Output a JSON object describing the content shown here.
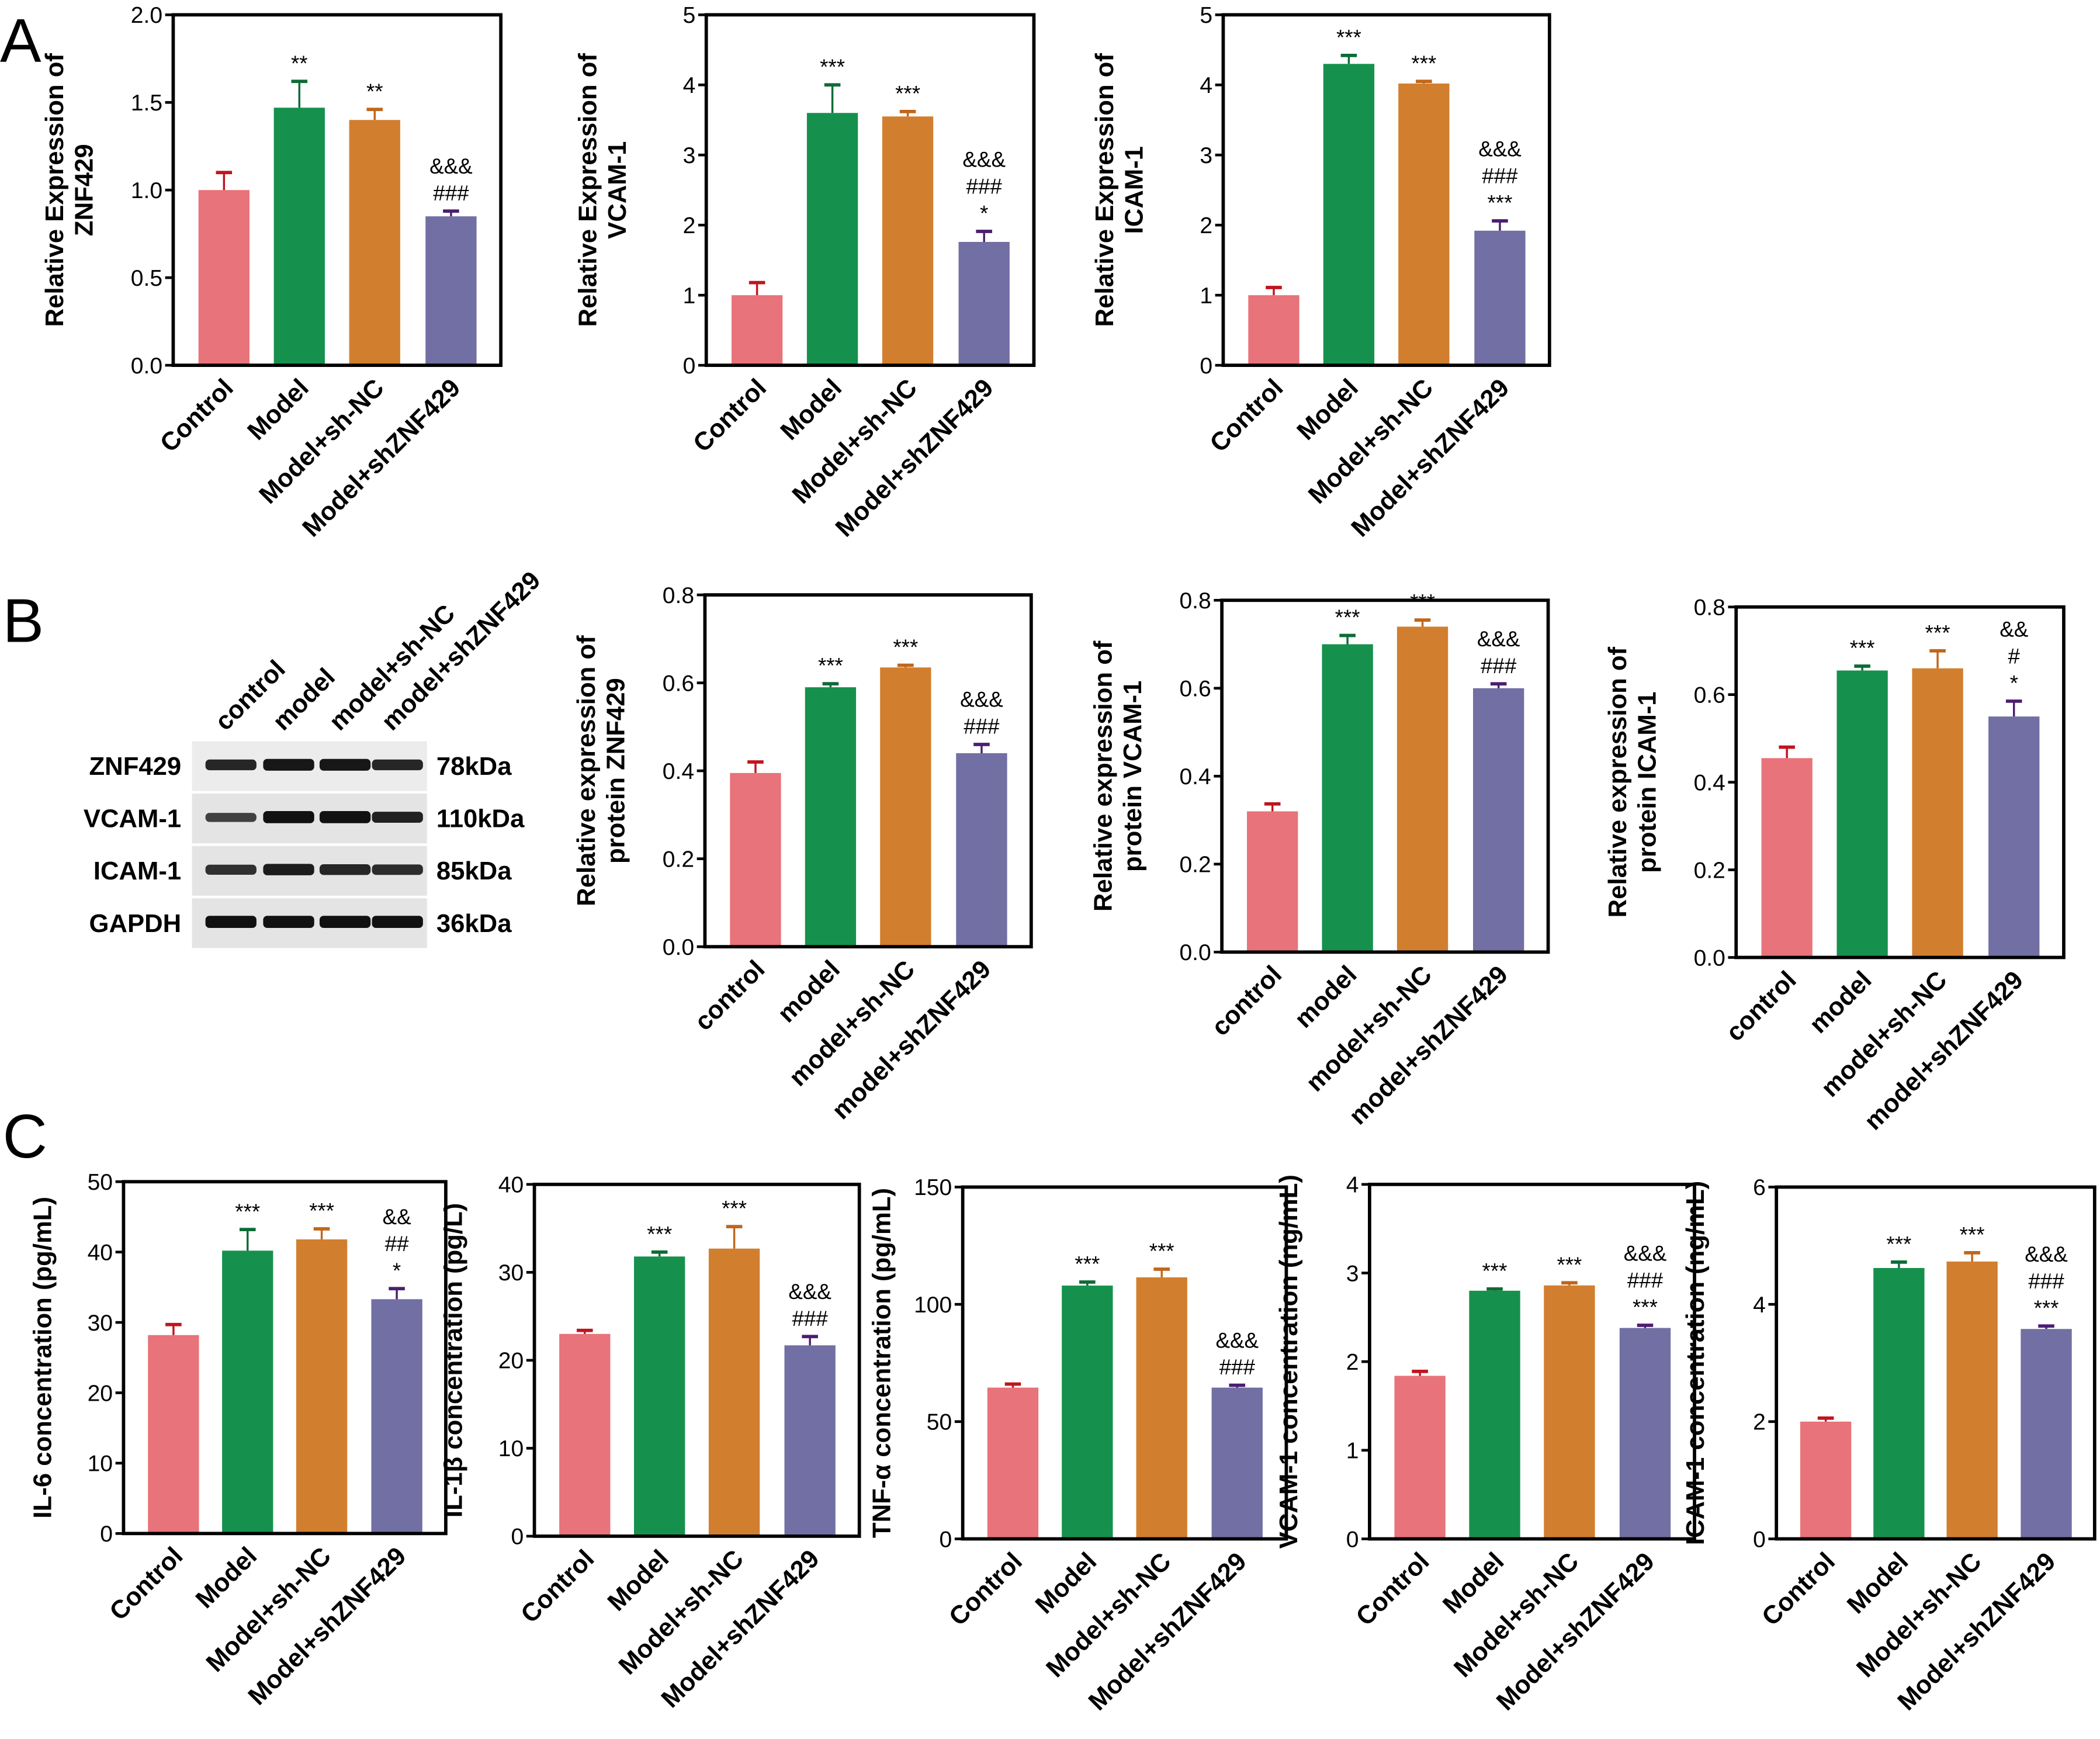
{
  "panel_labels": [
    "A",
    "B",
    "C"
  ],
  "colors": [
    "#E8737A",
    "#16914D",
    "#D17F2E",
    "#716FA3"
  ],
  "error_colors": [
    "#C0141E",
    "#0E6B36",
    "#C0661A",
    "#4A1E70"
  ],
  "western_blot": {
    "lanes": [
      "control",
      "model",
      "model+sh-NC",
      "model+shZNF429"
    ],
    "proteins": [
      {
        "name": "ZNF429",
        "size": "78kDa",
        "intensity": [
          0.8,
          0.95,
          0.95,
          0.8
        ]
      },
      {
        "name": "VCAM-1",
        "size": "110kDa",
        "intensity": [
          0.55,
          1.0,
          1.0,
          0.85
        ]
      },
      {
        "name": "ICAM-1",
        "size": "85kDa",
        "intensity": [
          0.7,
          0.9,
          0.8,
          0.75
        ]
      },
      {
        "name": "GAPDH",
        "size": "36kDa",
        "intensity": [
          1.0,
          1.0,
          1.0,
          1.0
        ]
      }
    ]
  },
  "chart_data": [
    {
      "type": "bar",
      "panel": "A",
      "ylabel": [
        "Relative Expression of",
        "ZNF429"
      ],
      "categories": [
        "Control",
        "Model",
        "Model+sh-NC",
        "Model+shZNF429"
      ],
      "values": [
        1.0,
        1.47,
        1.4,
        0.85
      ],
      "errors": [
        0.1,
        0.15,
        0.06,
        0.03
      ],
      "annotations": [
        [],
        [
          "**"
        ],
        [
          "**"
        ],
        [
          "&&&",
          "###"
        ]
      ],
      "ylim": [
        0,
        2
      ],
      "yticks": [
        "0.0",
        "0.5",
        "1.0",
        "1.5",
        "2.0"
      ],
      "tick_values": [
        0,
        0.5,
        1,
        1.5,
        2
      ]
    },
    {
      "type": "bar",
      "panel": "A",
      "ylabel": [
        "Relative Expression of",
        "VCAM-1"
      ],
      "categories": [
        "Control",
        "Model",
        "Model+sh-NC",
        "Model+shZNF429"
      ],
      "values": [
        1.0,
        3.6,
        3.55,
        1.76
      ],
      "errors": [
        0.18,
        0.4,
        0.07,
        0.15
      ],
      "annotations": [
        [],
        [
          "***"
        ],
        [
          "***"
        ],
        [
          "&&&",
          "###",
          "*"
        ]
      ],
      "ylim": [
        0,
        5
      ],
      "yticks": [
        "0",
        "1",
        "2",
        "3",
        "4",
        "5"
      ],
      "tick_values": [
        0,
        1,
        2,
        3,
        4,
        5
      ]
    },
    {
      "type": "bar",
      "panel": "A",
      "ylabel": [
        "Relative Expression of",
        "ICAM-1"
      ],
      "categories": [
        "Control",
        "Model",
        "Model+sh-NC",
        "Model+shZNF429"
      ],
      "values": [
        1.0,
        4.3,
        4.02,
        1.92
      ],
      "errors": [
        0.11,
        0.12,
        0.03,
        0.14
      ],
      "annotations": [
        [],
        [
          "***"
        ],
        [
          "***"
        ],
        [
          "&&&",
          "###",
          "***"
        ]
      ],
      "ylim": [
        0,
        5
      ],
      "yticks": [
        "0",
        "1",
        "2",
        "3",
        "4",
        "5"
      ],
      "tick_values": [
        0,
        1,
        2,
        3,
        4,
        5
      ]
    },
    {
      "type": "bar",
      "panel": "B",
      "ylabel": [
        "Relative expression of",
        "protein ZNF429"
      ],
      "categories": [
        "control",
        "model",
        "model+sh-NC",
        "model+shZNF429"
      ],
      "values": [
        0.395,
        0.59,
        0.635,
        0.44
      ],
      "errors": [
        0.025,
        0.008,
        0.005,
        0.02
      ],
      "annotations": [
        [],
        [
          "***"
        ],
        [
          "***"
        ],
        [
          "&&&",
          "###"
        ]
      ],
      "ylim": [
        0,
        0.8
      ],
      "yticks": [
        "0.0",
        "0.2",
        "0.4",
        "0.6",
        "0.8"
      ],
      "tick_values": [
        0,
        0.2,
        0.4,
        0.6,
        0.8
      ]
    },
    {
      "type": "bar",
      "panel": "B",
      "ylabel": [
        "Relative expression of",
        "protein VCAM-1"
      ],
      "categories": [
        "control",
        "model",
        "model+sh-NC",
        "model+shZNF429"
      ],
      "values": [
        0.32,
        0.7,
        0.74,
        0.6
      ],
      "errors": [
        0.017,
        0.02,
        0.015,
        0.01
      ],
      "annotations": [
        [],
        [
          "***"
        ],
        [
          "***"
        ],
        [
          "&&&",
          "###"
        ]
      ],
      "ylim": [
        0,
        0.8
      ],
      "yticks": [
        "0.0",
        "0.2",
        "0.4",
        "0.6",
        "0.8"
      ],
      "tick_values": [
        0,
        0.2,
        0.4,
        0.6,
        0.8
      ]
    },
    {
      "type": "bar",
      "panel": "B",
      "ylabel": [
        "Relative expression of",
        "protein ICAM-1"
      ],
      "categories": [
        "control",
        "model",
        "model+sh-NC",
        "model+shZNF429"
      ],
      "values": [
        0.455,
        0.655,
        0.66,
        0.55
      ],
      "errors": [
        0.025,
        0.01,
        0.04,
        0.035
      ],
      "annotations": [
        [],
        [
          "***"
        ],
        [
          "***"
        ],
        [
          "&&",
          "#",
          "*"
        ]
      ],
      "ylim": [
        0,
        0.8
      ],
      "yticks": [
        "0.0",
        "0.2",
        "0.4",
        "0.6",
        "0.8"
      ],
      "tick_values": [
        0,
        0.2,
        0.4,
        0.6,
        0.8
      ]
    },
    {
      "type": "bar",
      "panel": "C",
      "ylabel": [
        "IL-6 concentration (pg/mL)"
      ],
      "categories": [
        "Control",
        "Model",
        "Model+sh-NC",
        "Model+shZNF429"
      ],
      "values": [
        28.2,
        40.2,
        41.8,
        33.3
      ],
      "errors": [
        1.5,
        3.0,
        1.5,
        1.5
      ],
      "annotations": [
        [],
        [
          "***"
        ],
        [
          "***"
        ],
        [
          "&&",
          "##",
          "*"
        ]
      ],
      "ylim": [
        0,
        50
      ],
      "yticks": [
        "0",
        "10",
        "20",
        "30",
        "40",
        "50"
      ],
      "tick_values": [
        0,
        10,
        20,
        30,
        40,
        50
      ]
    },
    {
      "type": "bar",
      "panel": "C",
      "ylabel": [
        "IL-1β concentration  (pg/L)"
      ],
      "categories": [
        "Control",
        "Model",
        "Model+sh-NC",
        "Model+shZNF429"
      ],
      "values": [
        23.0,
        31.8,
        32.7,
        21.7
      ],
      "errors": [
        0.4,
        0.5,
        2.5,
        1.0
      ],
      "annotations": [
        [],
        [
          "***"
        ],
        [
          "***"
        ],
        [
          "&&&",
          "###"
        ]
      ],
      "ylim": [
        0,
        40
      ],
      "yticks": [
        "0",
        "10",
        "20",
        "30",
        "40"
      ],
      "tick_values": [
        0,
        10,
        20,
        30,
        40
      ]
    },
    {
      "type": "bar",
      "panel": "C",
      "ylabel": [
        "TNF-α concentration (pg/mL)"
      ],
      "categories": [
        "Control",
        "Model",
        "Model+sh-NC",
        "Model+shZNF429"
      ],
      "values": [
        64.5,
        108,
        111.5,
        64.5
      ],
      "errors": [
        1.5,
        1.5,
        3.5,
        1.0
      ],
      "annotations": [
        [],
        [
          "***"
        ],
        [
          "***"
        ],
        [
          "&&&",
          "###"
        ]
      ],
      "ylim": [
        0,
        150
      ],
      "yticks": [
        "0",
        "50",
        "100",
        "150"
      ],
      "tick_values": [
        0,
        50,
        100,
        150
      ]
    },
    {
      "type": "bar",
      "panel": "C",
      "ylabel": [
        "VCAM-1 concentration (ng/mL)"
      ],
      "categories": [
        "Control",
        "Model",
        "Model+sh-NC",
        "Model+shZNF429"
      ],
      "values": [
        1.84,
        2.8,
        2.86,
        2.38
      ],
      "errors": [
        0.05,
        0.02,
        0.03,
        0.03
      ],
      "annotations": [
        [],
        [
          "***"
        ],
        [
          "***"
        ],
        [
          "&&&",
          "###",
          "***"
        ]
      ],
      "ylim": [
        0,
        4
      ],
      "yticks": [
        "0",
        "1",
        "2",
        "3",
        "4"
      ],
      "tick_values": [
        0,
        1,
        2,
        3,
        4
      ]
    },
    {
      "type": "bar",
      "panel": "C",
      "ylabel": [
        "ICAM-1 concentration (ng/mL)"
      ],
      "categories": [
        "Control",
        "Model",
        "Model+sh-NC",
        "Model+shZNF429"
      ],
      "values": [
        2.0,
        4.62,
        4.73,
        3.58
      ],
      "errors": [
        0.06,
        0.1,
        0.15,
        0.05
      ],
      "annotations": [
        [],
        [
          "***"
        ],
        [
          "***"
        ],
        [
          "&&&",
          "###",
          "***"
        ]
      ],
      "ylim": [
        0,
        6
      ],
      "yticks": [
        "0",
        "2",
        "4",
        "6"
      ],
      "tick_values": [
        0,
        2,
        4,
        6
      ]
    }
  ]
}
